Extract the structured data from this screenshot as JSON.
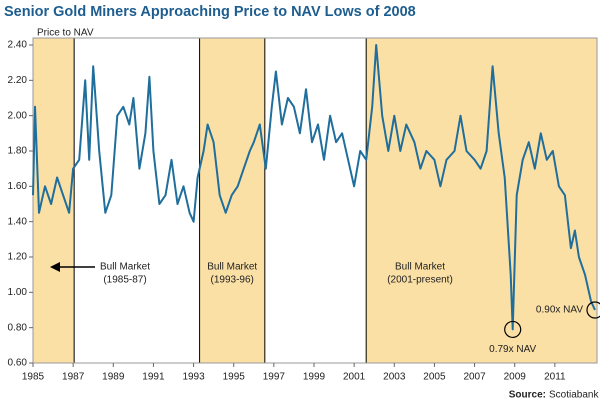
{
  "chart_data": {
    "type": "line",
    "title": "Senior Gold Miners Approaching Price to NAV Lows of 2008",
    "y_label": "Price to NAV",
    "source_label": "Source:",
    "source": "Scotiabank",
    "color": "#1f6e9c",
    "shade_color": "#fbe0a6",
    "x": [
      1985.0,
      1985.1,
      1985.3,
      1985.6,
      1985.9,
      1986.2,
      1986.5,
      1986.8,
      1987.0,
      1987.3,
      1987.6,
      1987.8,
      1988.0,
      1988.3,
      1988.6,
      1988.9,
      1989.2,
      1989.5,
      1989.8,
      1990.0,
      1990.3,
      1990.6,
      1990.8,
      1991.0,
      1991.3,
      1991.6,
      1991.9,
      1992.2,
      1992.5,
      1992.8,
      1993.0,
      1993.2,
      1993.5,
      1993.7,
      1994.0,
      1994.3,
      1994.6,
      1994.9,
      1995.2,
      1995.5,
      1995.8,
      1996.0,
      1996.3,
      1996.6,
      1996.9,
      1997.1,
      1997.4,
      1997.7,
      1998.0,
      1998.3,
      1998.6,
      1998.9,
      1999.2,
      1999.5,
      1999.8,
      2000.1,
      2000.4,
      2000.7,
      2001.0,
      2001.3,
      2001.6,
      2001.9,
      2002.1,
      2002.4,
      2002.7,
      2003.0,
      2003.3,
      2003.6,
      2004.0,
      2004.3,
      2004.6,
      2005.0,
      2005.3,
      2005.6,
      2006.0,
      2006.3,
      2006.6,
      2007.0,
      2007.3,
      2007.6,
      2007.9,
      2008.2,
      2008.5,
      2008.8,
      2008.9,
      2009.1,
      2009.4,
      2009.7,
      2010.0,
      2010.3,
      2010.6,
      2010.9,
      2011.2,
      2011.5,
      2011.8,
      2012.0,
      2012.2,
      2012.5,
      2012.8,
      2013.0
    ],
    "values": [
      1.55,
      2.05,
      1.45,
      1.6,
      1.5,
      1.65,
      1.55,
      1.45,
      1.7,
      1.75,
      2.2,
      1.75,
      2.28,
      1.8,
      1.45,
      1.55,
      2.0,
      2.05,
      1.95,
      2.1,
      1.7,
      1.9,
      2.22,
      1.8,
      1.5,
      1.55,
      1.75,
      1.5,
      1.6,
      1.45,
      1.4,
      1.65,
      1.8,
      1.95,
      1.85,
      1.55,
      1.45,
      1.55,
      1.6,
      1.7,
      1.8,
      1.85,
      1.95,
      1.7,
      2.05,
      2.25,
      1.95,
      2.1,
      2.05,
      1.9,
      2.15,
      1.85,
      1.95,
      1.75,
      2.0,
      1.85,
      1.9,
      1.75,
      1.6,
      1.8,
      1.75,
      2.05,
      2.4,
      2.0,
      1.8,
      2.0,
      1.8,
      1.95,
      1.85,
      1.7,
      1.8,
      1.75,
      1.6,
      1.75,
      1.8,
      2.0,
      1.8,
      1.75,
      1.7,
      1.8,
      2.28,
      1.9,
      1.65,
      1.1,
      0.79,
      1.55,
      1.75,
      1.85,
      1.7,
      1.9,
      1.75,
      1.8,
      1.6,
      1.55,
      1.25,
      1.35,
      1.2,
      1.1,
      0.95,
      0.9
    ],
    "xlim": [
      1985,
      2013.1
    ],
    "ylim": [
      0.6,
      2.4
    ],
    "xticks": [
      1985,
      1987,
      1989,
      1991,
      1993,
      1995,
      1997,
      1999,
      2001,
      2003,
      2005,
      2007,
      2009,
      2011
    ],
    "yticks": [
      {
        "value": 0.6,
        "label": "0.60"
      },
      {
        "value": 0.8,
        "label": "0.80"
      },
      {
        "value": 1.0,
        "label": "1.00"
      },
      {
        "value": 1.2,
        "label": "1.20"
      },
      {
        "value": 1.4,
        "label": "1.40"
      },
      {
        "value": 1.6,
        "label": "1.60"
      },
      {
        "value": 1.8,
        "label": "1.80"
      },
      {
        "value": 2.0,
        "label": "2.00"
      },
      {
        "value": 2.2,
        "label": "2.20"
      },
      {
        "value": 2.4,
        "label": "2.40"
      }
    ],
    "regions": [
      {
        "start": 1985,
        "end": 1987.05,
        "label": "Bull Market",
        "sublabel": "(1985-87)"
      },
      {
        "start": 1993.3,
        "end": 1996.55,
        "label": "Bull Market",
        "sublabel": "(1993-96)"
      },
      {
        "start": 2001.6,
        "end": 2013.1,
        "label": "Bull Market",
        "sublabel": "(2001-present)"
      }
    ],
    "annotations": [
      {
        "text": "0.79x NAV",
        "x": 2008.9,
        "y": 0.79
      },
      {
        "text": "0.90x NAV",
        "x": 2013.0,
        "y": 0.9
      }
    ]
  }
}
